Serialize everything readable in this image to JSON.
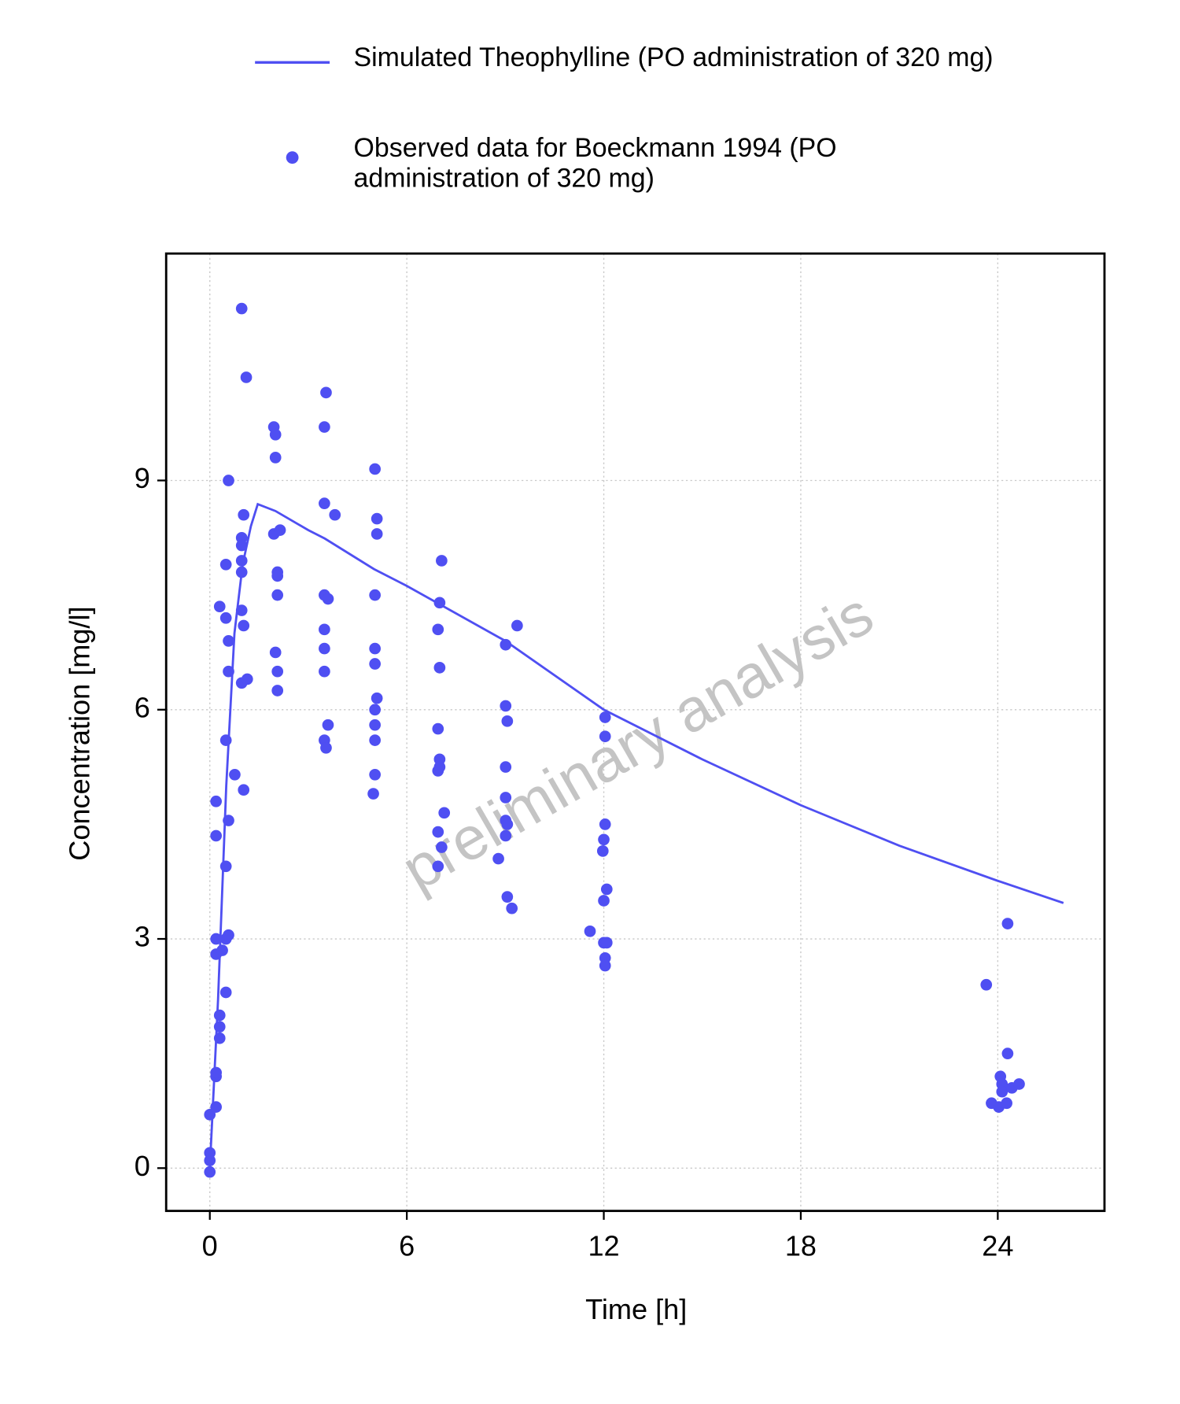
{
  "chart_data": {
    "type": "line",
    "x_label": "Time [h]",
    "y_label": "Concentration [mg/l]",
    "watermark": "preliminary analysis",
    "xlim": [
      -1.33,
      27.25
    ],
    "ylim": [
      -0.56,
      11.97
    ],
    "xticks": [
      0,
      6,
      12,
      18,
      24
    ],
    "yticks": [
      0,
      3,
      6,
      9
    ],
    "grid": true,
    "series": [
      {
        "name": "Simulated Theophylline (PO administration of 320 mg)",
        "color": "#4f4ff2",
        "mode": "line",
        "x": [
          0,
          0.25,
          0.5,
          0.75,
          1.0,
          1.25,
          1.46,
          2,
          3,
          3.5,
          5,
          6,
          9,
          12,
          15,
          18,
          21,
          24,
          26
        ],
        "y": [
          0,
          2.2,
          5.0,
          7.0,
          7.9,
          8.4,
          8.69,
          8.6,
          8.35,
          8.24,
          7.84,
          7.62,
          6.9,
          6.0,
          5.35,
          4.75,
          4.22,
          3.76,
          3.47
        ]
      },
      {
        "name": "Observed data for Boeckmann 1994 (PO administration of 320 mg)",
        "color": "#4f4ff2",
        "mode": "scatter",
        "x": [
          0,
          0,
          0,
          0,
          0.19,
          0.19,
          0.19,
          0.19,
          0.19,
          0.19,
          0.19,
          0.3,
          0.3,
          0.3,
          0.3,
          0.38,
          0.49,
          0.49,
          0.49,
          0.49,
          0.49,
          0.49,
          0.57,
          0.57,
          0.57,
          0.57,
          0.57,
          0.76,
          0.97,
          0.97,
          0.97,
          0.97,
          0.97,
          0.97,
          0.97,
          1.03,
          1.03,
          1.03,
          1.11,
          1.14,
          1.95,
          2.0,
          2.0,
          1.95,
          2.14,
          2.06,
          2.06,
          2.06,
          2.0,
          2.06,
          2.06,
          3.54,
          3.49,
          3.49,
          3.81,
          3.49,
          3.6,
          3.49,
          3.49,
          3.49,
          3.6,
          3.49,
          3.54,
          5.03,
          5.09,
          5.09,
          5.03,
          5.03,
          5.03,
          5.09,
          5.03,
          5.03,
          5.03,
          5.03,
          4.98,
          7.06,
          7.0,
          6.95,
          7.0,
          6.95,
          7.0,
          6.95,
          7.0,
          7.14,
          6.95,
          7.06,
          6.95,
          8.79,
          9.01,
          9.36,
          9.01,
          9.06,
          9.01,
          9.01,
          9.01,
          9.06,
          9.01,
          9.06,
          9.2,
          11.58,
          12.04,
          12.04,
          12.04,
          12.0,
          11.97,
          12.0,
          12.09,
          12.0,
          12.09,
          12.04,
          12.04,
          23.65,
          24.3,
          24.3,
          24.08,
          24.13,
          23.81,
          24.03,
          24.27,
          24.13,
          24.43,
          24.65
        ],
        "y": [
          -0.05,
          0.1,
          0.2,
          0.7,
          0.8,
          1.2,
          1.25,
          2.8,
          3.0,
          4.35,
          4.8,
          7.35,
          1.7,
          2.0,
          1.85,
          2.85,
          2.3,
          3.0,
          3.95,
          5.6,
          7.2,
          7.9,
          3.05,
          4.55,
          6.5,
          6.9,
          9.0,
          5.15,
          11.25,
          8.25,
          8.15,
          7.95,
          7.8,
          7.3,
          6.35,
          4.95,
          7.1,
          8.55,
          10.35,
          6.4,
          9.7,
          9.6,
          9.3,
          8.3,
          8.35,
          7.8,
          7.75,
          7.5,
          6.75,
          6.5,
          6.25,
          10.15,
          9.7,
          8.7,
          8.55,
          7.5,
          7.45,
          7.05,
          6.8,
          6.5,
          5.8,
          5.6,
          5.5,
          9.15,
          8.5,
          8.3,
          7.5,
          6.8,
          6.6,
          6.15,
          6.0,
          5.8,
          5.6,
          5.15,
          4.9,
          7.95,
          7.4,
          7.05,
          6.55,
          5.75,
          5.35,
          5.2,
          5.25,
          4.65,
          4.4,
          4.2,
          3.95,
          4.05,
          6.85,
          7.1,
          6.05,
          5.85,
          5.25,
          4.85,
          4.55,
          4.5,
          4.35,
          3.55,
          3.4,
          3.1,
          5.9,
          5.65,
          4.5,
          4.3,
          4.15,
          3.5,
          3.65,
          2.95,
          2.95,
          2.75,
          2.65,
          2.4,
          3.2,
          1.5,
          1.2,
          1.1,
          0.85,
          0.8,
          0.85,
          1.0,
          1.05,
          1.1
        ]
      }
    ]
  }
}
